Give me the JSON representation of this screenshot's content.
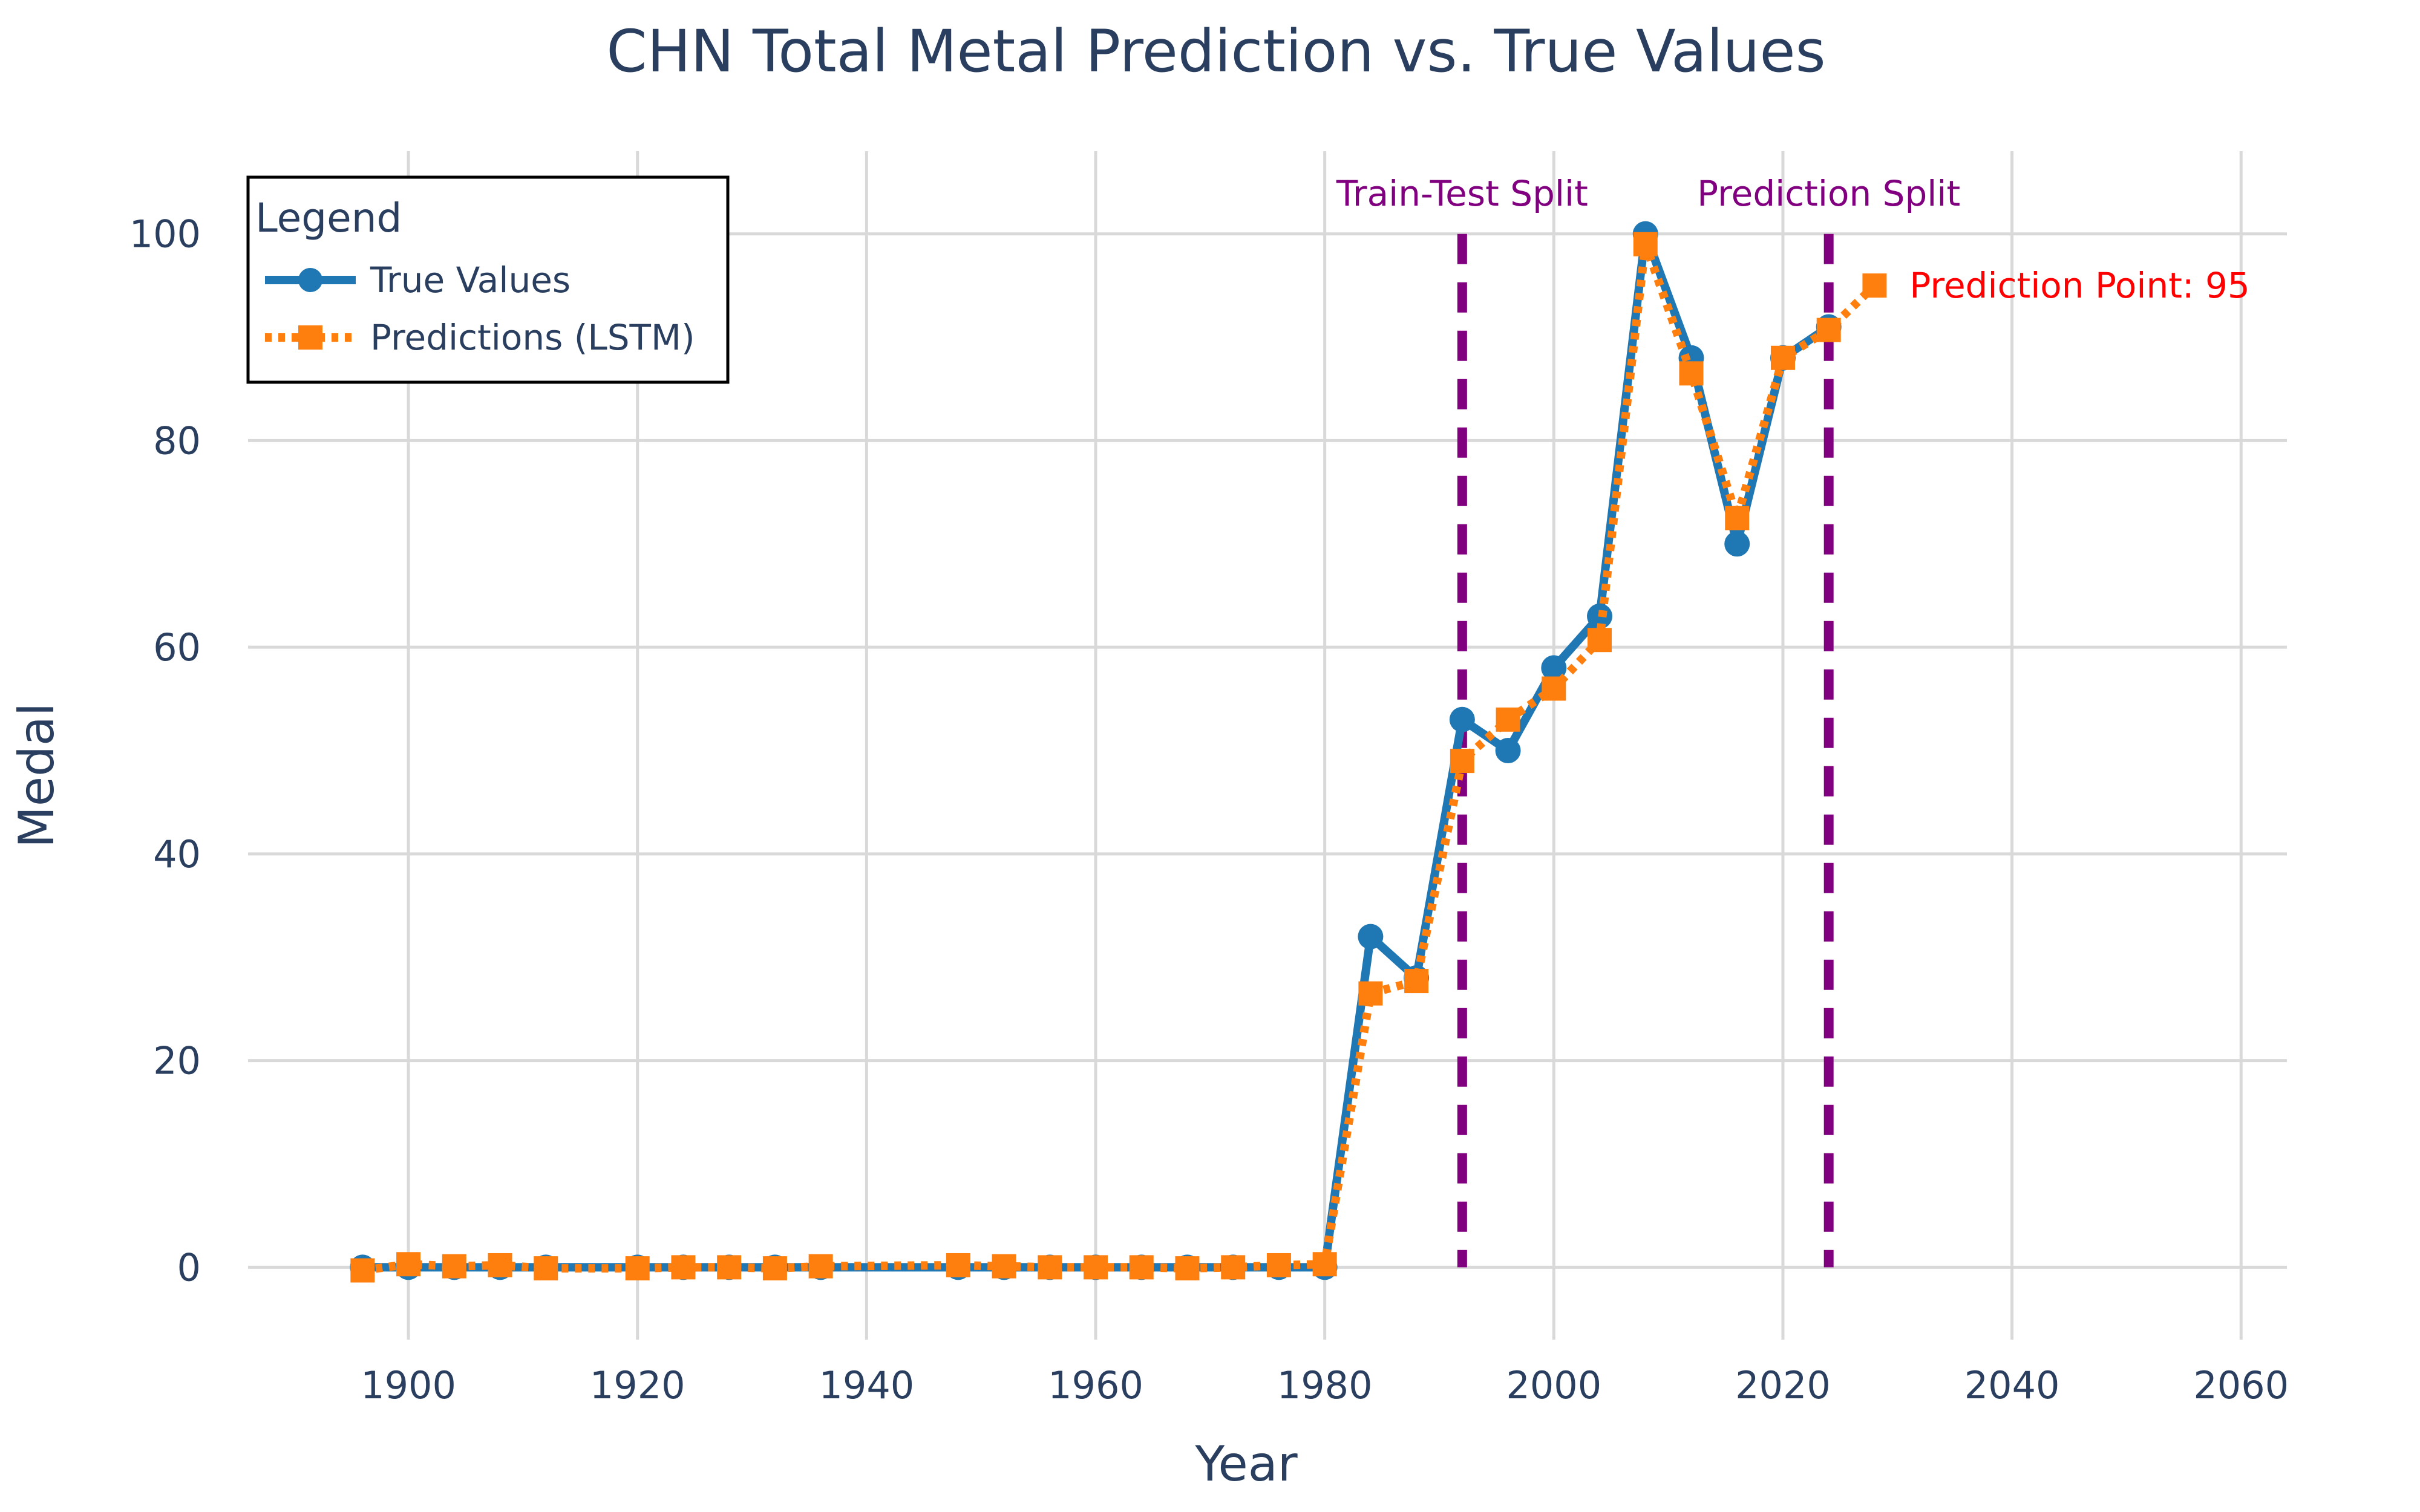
{
  "chart_data": {
    "type": "line",
    "title": "CHN Total Metal Prediction vs. True Values",
    "xlabel": "Year",
    "ylabel": "Medal",
    "xlim": [
      1886,
      2064
    ],
    "ylim": [
      -7,
      108
    ],
    "xticks": [
      1900,
      1920,
      1940,
      1960,
      1980,
      2000,
      2020,
      2040,
      2060
    ],
    "yticks": [
      0,
      20,
      40,
      60,
      80,
      100
    ],
    "grid": true,
    "legend": {
      "title": "Legend",
      "placement": "top-left",
      "entries": [
        "True Values",
        "Predictions (LSTM)"
      ]
    },
    "series": [
      {
        "name": "True Values",
        "color": "#1f77b4",
        "style": "solid",
        "marker": "circle",
        "points": [
          [
            1896,
            0
          ],
          [
            1900,
            0
          ],
          [
            1904,
            0
          ],
          [
            1908,
            0
          ],
          [
            1912,
            0
          ],
          [
            1920,
            0
          ],
          [
            1924,
            0
          ],
          [
            1928,
            0
          ],
          [
            1932,
            0
          ],
          [
            1936,
            0
          ],
          [
            1948,
            0
          ],
          [
            1952,
            0
          ],
          [
            1956,
            0
          ],
          [
            1960,
            0
          ],
          [
            1964,
            0
          ],
          [
            1968,
            0
          ],
          [
            1972,
            0
          ],
          [
            1976,
            0
          ],
          [
            1980,
            0
          ],
          [
            1984,
            32
          ],
          [
            1988,
            28
          ],
          [
            1992,
            53
          ],
          [
            1996,
            50
          ],
          [
            2000,
            58
          ],
          [
            2004,
            63
          ],
          [
            2008,
            100
          ],
          [
            2012,
            88
          ],
          [
            2016,
            70
          ],
          [
            2020,
            88
          ],
          [
            2024,
            91
          ]
        ]
      },
      {
        "name": "Predictions (LSTM)",
        "color": "#ff7f0e",
        "style": "dotted",
        "marker": "square",
        "points": [
          [
            1896,
            -0.3
          ],
          [
            1900,
            0.3
          ],
          [
            1904,
            0.1
          ],
          [
            1908,
            0.2
          ],
          [
            1912,
            -0.1
          ],
          [
            1920,
            -0.1
          ],
          [
            1924,
            0
          ],
          [
            1928,
            0
          ],
          [
            1932,
            -0.1
          ],
          [
            1936,
            0.1
          ],
          [
            1948,
            0.2
          ],
          [
            1952,
            0.1
          ],
          [
            1956,
            0
          ],
          [
            1960,
            0
          ],
          [
            1964,
            0
          ],
          [
            1968,
            -0.1
          ],
          [
            1972,
            0
          ],
          [
            1976,
            0.2
          ],
          [
            1980,
            0.3
          ],
          [
            1984,
            26.5
          ],
          [
            1988,
            27.7
          ],
          [
            1992,
            49
          ],
          [
            1996,
            53
          ],
          [
            2000,
            56
          ],
          [
            2004,
            60.7
          ],
          [
            2008,
            99
          ],
          [
            2012,
            86.5
          ],
          [
            2016,
            72.5
          ],
          [
            2020,
            88
          ],
          [
            2024,
            90.7
          ],
          [
            2028,
            95
          ]
        ]
      }
    ],
    "vlines": [
      {
        "x": 1992,
        "label": "Train-Test Split",
        "color": "#800080"
      },
      {
        "x": 2024,
        "label": "Prediction Split",
        "color": "#800080"
      }
    ],
    "annotation": {
      "x": 2028,
      "y": 95,
      "text": "Prediction Point: 95",
      "color": "#ff0000"
    }
  }
}
